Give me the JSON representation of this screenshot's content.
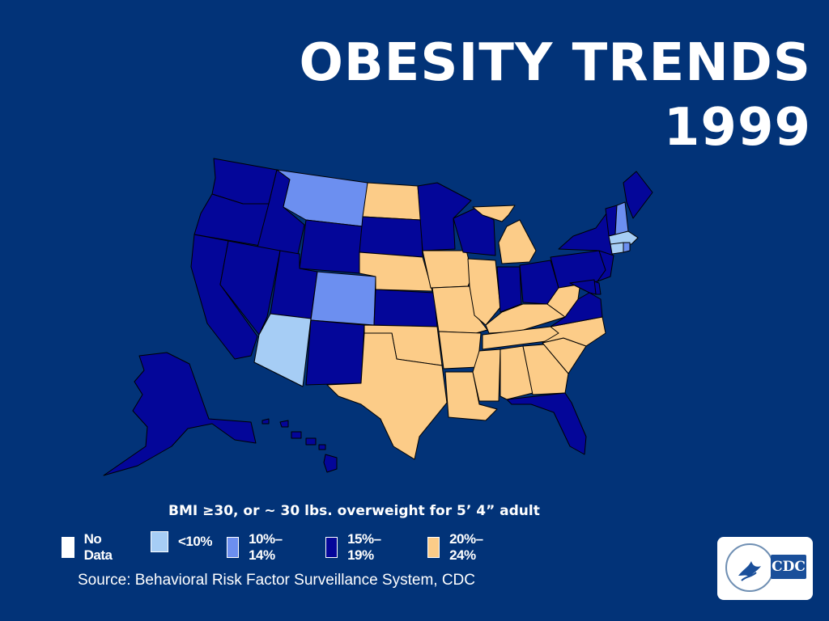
{
  "title": {
    "line1": "OBESITY TRENDS",
    "line2": "1999"
  },
  "subtitle": "BMI ≥30, or ~ 30 lbs. overweight for 5’ 4” adult",
  "legend": [
    {
      "label": "No Data",
      "color": "#ffffff"
    },
    {
      "label": "<10%",
      "color": "#a6cdf5"
    },
    {
      "label": "10%–14%",
      "color": "#6c8ff0"
    },
    {
      "label": "15%–19%",
      "color": "#040699"
    },
    {
      "label": "20%–24%",
      "color": "#fccc88"
    }
  ],
  "source": "Source: Behavioral Risk Factor Surveillance System, CDC",
  "logo": {
    "text": "CDC"
  },
  "map_style": {
    "background": "#023378",
    "border_color": "#000000"
  },
  "states": [
    {
      "state": "Washington",
      "category": "15%–19%"
    },
    {
      "state": "Oregon",
      "category": "15%–19%"
    },
    {
      "state": "California",
      "category": "15%–19%"
    },
    {
      "state": "Idaho",
      "category": "15%–19%"
    },
    {
      "state": "Nevada",
      "category": "15%–19%"
    },
    {
      "state": "Montana",
      "category": "10%–14%"
    },
    {
      "state": "Wyoming",
      "category": "15%–19%"
    },
    {
      "state": "Utah",
      "category": "15%–19%"
    },
    {
      "state": "Arizona",
      "category": "<10%"
    },
    {
      "state": "Colorado",
      "category": "10%–14%"
    },
    {
      "state": "New Mexico",
      "category": "15%–19%"
    },
    {
      "state": "North Dakota",
      "category": "20%–24%"
    },
    {
      "state": "South Dakota",
      "category": "15%–19%"
    },
    {
      "state": "Nebraska",
      "category": "20%–24%"
    },
    {
      "state": "Kansas",
      "category": "15%–19%"
    },
    {
      "state": "Oklahoma",
      "category": "20%–24%"
    },
    {
      "state": "Texas",
      "category": "20%–24%"
    },
    {
      "state": "Minnesota",
      "category": "15%–19%"
    },
    {
      "state": "Iowa",
      "category": "20%–24%"
    },
    {
      "state": "Missouri",
      "category": "20%–24%"
    },
    {
      "state": "Arkansas",
      "category": "20%–24%"
    },
    {
      "state": "Louisiana",
      "category": "20%–24%"
    },
    {
      "state": "Wisconsin",
      "category": "15%–19%"
    },
    {
      "state": "Illinois",
      "category": "20%–24%"
    },
    {
      "state": "Michigan",
      "category": "20%–24%"
    },
    {
      "state": "Indiana",
      "category": "15%–19%"
    },
    {
      "state": "Ohio",
      "category": "15%–19%"
    },
    {
      "state": "Kentucky",
      "category": "20%–24%"
    },
    {
      "state": "Tennessee",
      "category": "20%–24%"
    },
    {
      "state": "Mississippi",
      "category": "20%–24%"
    },
    {
      "state": "Alabama",
      "category": "20%–24%"
    },
    {
      "state": "Georgia",
      "category": "20%–24%"
    },
    {
      "state": "Florida",
      "category": "15%–19%"
    },
    {
      "state": "South Carolina",
      "category": "20%–24%"
    },
    {
      "state": "North Carolina",
      "category": "20%–24%"
    },
    {
      "state": "Virginia",
      "category": "15%–19%"
    },
    {
      "state": "West Virginia",
      "category": "20%–24%"
    },
    {
      "state": "Pennsylvania",
      "category": "15%–19%"
    },
    {
      "state": "New York",
      "category": "15%–19%"
    },
    {
      "state": "New Jersey",
      "category": "15%–19%"
    },
    {
      "state": "Delaware",
      "category": "15%–19%"
    },
    {
      "state": "Maryland",
      "category": "15%–19%"
    },
    {
      "state": "Connecticut",
      "category": "<10%"
    },
    {
      "state": "Rhode Island",
      "category": "10%–14%"
    },
    {
      "state": "Massachusetts",
      "category": "<10%"
    },
    {
      "state": "Vermont",
      "category": "15%–19%"
    },
    {
      "state": "New Hampshire",
      "category": "10%–14%"
    },
    {
      "state": "Maine",
      "category": "15%–19%"
    },
    {
      "state": "Alaska",
      "category": "15%–19%"
    },
    {
      "state": "Hawaii",
      "category": "15%–19%"
    }
  ]
}
